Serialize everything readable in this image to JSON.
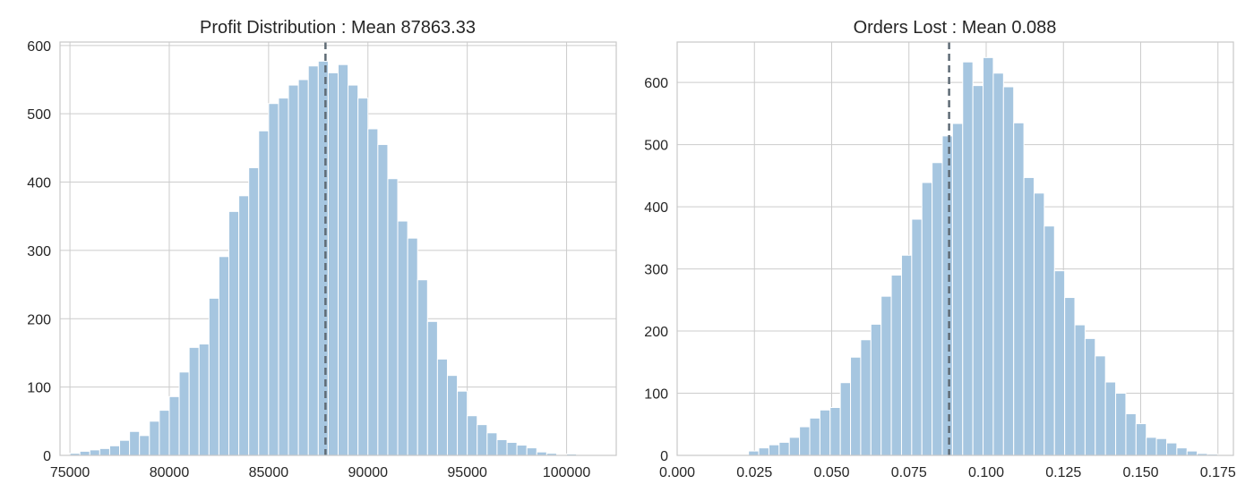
{
  "colors": {
    "bar_fill": "#a6c6e0",
    "mean_line": "#5f6b75"
  },
  "chart_data": [
    {
      "type": "histogram",
      "title": "Profit Distribution : Mean 87863.33",
      "mean": 87863.33,
      "bin_start": 75000,
      "bin_width": 500,
      "counts": [
        3,
        6,
        8,
        10,
        14,
        22,
        35,
        29,
        50,
        66,
        86,
        122,
        158,
        163,
        230,
        291,
        357,
        380,
        421,
        475,
        515,
        523,
        542,
        550,
        570,
        577,
        560,
        572,
        542,
        523,
        478,
        455,
        405,
        343,
        318,
        257,
        196,
        141,
        117,
        94,
        58,
        45,
        33,
        23,
        19,
        15,
        11,
        5,
        3,
        1,
        2,
        1,
        1
      ],
      "xlim": [
        74500,
        102500
      ],
      "ylim": [
        0,
        605
      ],
      "xticks": [
        75000,
        80000,
        85000,
        90000,
        95000,
        100000
      ],
      "xtick_labels": [
        "75000",
        "80000",
        "85000",
        "90000",
        "95000",
        "100000"
      ],
      "yticks": [
        0,
        100,
        200,
        300,
        400,
        500,
        600
      ],
      "ytick_labels": [
        "0",
        "100",
        "200",
        "300",
        "400",
        "500",
        "600"
      ],
      "grid": true
    },
    {
      "type": "histogram",
      "title": "Orders Lost : Mean 0.088",
      "mean": 0.088,
      "bin_start": 0.0,
      "bin_width": 0.0033,
      "counts": [
        0,
        0,
        0,
        0,
        0,
        0,
        1,
        7,
        12,
        17,
        21,
        29,
        46,
        60,
        73,
        77,
        117,
        158,
        186,
        211,
        256,
        290,
        322,
        380,
        439,
        471,
        514,
        534,
        633,
        595,
        640,
        615,
        593,
        535,
        447,
        422,
        369,
        297,
        254,
        210,
        188,
        160,
        118,
        100,
        67,
        51,
        29,
        27,
        20,
        12,
        7,
        3,
        2,
        1
      ],
      "xlim": [
        0,
        0.18
      ],
      "ylim": [
        0,
        665
      ],
      "xticks": [
        0.0,
        0.025,
        0.05,
        0.075,
        0.1,
        0.125,
        0.15,
        0.175
      ],
      "xtick_labels": [
        "0.000",
        "0.025",
        "0.050",
        "0.075",
        "0.100",
        "0.125",
        "0.150",
        "0.175"
      ],
      "yticks": [
        0,
        100,
        200,
        300,
        400,
        500,
        600
      ],
      "ytick_labels": [
        "0",
        "100",
        "200",
        "300",
        "400",
        "500",
        "600"
      ],
      "grid": true
    }
  ]
}
